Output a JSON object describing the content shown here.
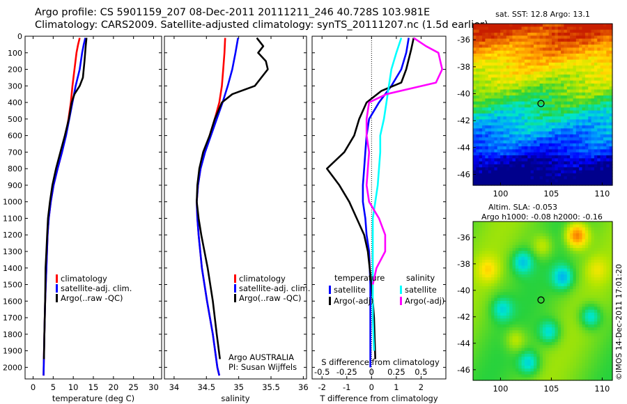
{
  "header": {
    "line1": "Argo profile: CS 5901159_207 08-Dec-2011 20111211_246 40.728S 103.981E",
    "line2": "Climatology: CARS2009. Satellite-adjusted climatology: synTS_20111207.nc (1.5d earlier)"
  },
  "colors": {
    "climatology": "#ff0000",
    "satellite": "#0000ff",
    "argo": "#000000",
    "sal_satellite": "#00ffff",
    "sal_argo": "#ff00ff"
  },
  "depth_axis": {
    "ticks": [
      0,
      100,
      200,
      300,
      400,
      500,
      600,
      700,
      800,
      900,
      1000,
      1100,
      1200,
      1300,
      1400,
      1500,
      1600,
      1700,
      1800,
      1900,
      2000
    ],
    "range": [
      0,
      2070
    ]
  },
  "chart_data": [
    {
      "id": "temperature",
      "type": "line",
      "xlabel": "temperature (deg C)",
      "xlim": [
        -2,
        32
      ],
      "xticks": [
        "0",
        "5",
        "10",
        "15",
        "20",
        "25",
        "30"
      ],
      "xtick_values": [
        0,
        5,
        10,
        15,
        20,
        25,
        30
      ],
      "legend": [
        "climatology",
        "satellite-adj. clim.",
        "Argo(..raw -QC)"
      ],
      "series": [
        {
          "name": "climatology",
          "color": "#ff0000",
          "points": [
            [
              11.6,
              10
            ],
            [
              11.2,
              50
            ],
            [
              10.8,
              100
            ],
            [
              10.3,
              200
            ],
            [
              9.8,
              300
            ],
            [
              9.4,
              400
            ],
            [
              8.8,
              500
            ],
            [
              8.1,
              600
            ],
            [
              7.2,
              700
            ],
            [
              6.1,
              800
            ],
            [
              5.1,
              900
            ],
            [
              4.4,
              1000
            ],
            [
              3.9,
              1100
            ],
            [
              3.6,
              1200
            ],
            [
              3.3,
              1400
            ],
            [
              3.0,
              1600
            ],
            [
              2.8,
              1800
            ],
            [
              2.6,
              2050
            ]
          ]
        },
        {
          "name": "satellite-adj. clim.",
          "color": "#0000ff",
          "points": [
            [
              13.0,
              10
            ],
            [
              12.6,
              50
            ],
            [
              12.2,
              100
            ],
            [
              11.6,
              200
            ],
            [
              10.6,
              300
            ],
            [
              9.8,
              400
            ],
            [
              9.0,
              500
            ],
            [
              8.2,
              600
            ],
            [
              7.2,
              700
            ],
            [
              6.1,
              800
            ],
            [
              5.1,
              900
            ],
            [
              4.4,
              1000
            ],
            [
              3.9,
              1100
            ],
            [
              3.6,
              1200
            ],
            [
              3.3,
              1400
            ],
            [
              3.0,
              1600
            ],
            [
              2.8,
              1800
            ],
            [
              2.6,
              2050
            ]
          ]
        },
        {
          "name": "Argo(..raw -QC)",
          "color": "#000000",
          "points": [
            [
              13.3,
              10
            ],
            [
              13.1,
              60
            ],
            [
              12.8,
              150
            ],
            [
              12.4,
              250
            ],
            [
              11.6,
              300
            ],
            [
              10.3,
              350
            ],
            [
              9.6,
              400
            ],
            [
              8.9,
              500
            ],
            [
              7.9,
              600
            ],
            [
              6.8,
              700
            ],
            [
              5.7,
              800
            ],
            [
              4.8,
              900
            ],
            [
              4.2,
              1000
            ],
            [
              3.7,
              1100
            ],
            [
              3.5,
              1200
            ],
            [
              3.3,
              1300
            ],
            [
              3.1,
              1400
            ],
            [
              3.0,
              1600
            ],
            [
              2.8,
              1800
            ],
            [
              2.7,
              1950
            ]
          ]
        }
      ]
    },
    {
      "id": "salinity",
      "type": "line",
      "xlabel": "salinity",
      "xlim": [
        33.85,
        36.05
      ],
      "xticks": [
        "34",
        "34.5",
        "35",
        "35.5",
        "36"
      ],
      "xtick_values": [
        34,
        34.5,
        35,
        35.5,
        36
      ],
      "legend": [
        "climatology",
        "satellite-adj. clim.",
        "Argo(..raw -QC)"
      ],
      "footer_lines": [
        "Argo AUSTRALIA",
        "PI: Susan Wijffels"
      ],
      "series": [
        {
          "name": "climatology",
          "color": "#ff0000",
          "points": [
            [
              34.79,
              10
            ],
            [
              34.78,
              100
            ],
            [
              34.76,
              200
            ],
            [
              34.74,
              300
            ],
            [
              34.7,
              400
            ],
            [
              34.63,
              500
            ],
            [
              34.55,
              600
            ],
            [
              34.47,
              700
            ],
            [
              34.41,
              800
            ],
            [
              34.37,
              900
            ],
            [
              34.35,
              1000
            ],
            [
              34.36,
              1100
            ],
            [
              34.38,
              1200
            ],
            [
              34.43,
              1400
            ],
            [
              34.51,
              1600
            ],
            [
              34.6,
              1800
            ],
            [
              34.67,
              2000
            ],
            [
              34.7,
              2050
            ]
          ]
        },
        {
          "name": "satellite-adj. clim.",
          "color": "#0000ff",
          "points": [
            [
              34.99,
              10
            ],
            [
              34.95,
              100
            ],
            [
              34.9,
              200
            ],
            [
              34.83,
              300
            ],
            [
              34.75,
              400
            ],
            [
              34.66,
              500
            ],
            [
              34.57,
              600
            ],
            [
              34.48,
              700
            ],
            [
              34.41,
              800
            ],
            [
              34.37,
              900
            ],
            [
              34.35,
              1000
            ],
            [
              34.36,
              1100
            ],
            [
              34.38,
              1200
            ],
            [
              34.43,
              1400
            ],
            [
              34.51,
              1600
            ],
            [
              34.6,
              1800
            ],
            [
              34.67,
              2000
            ],
            [
              34.7,
              2050
            ]
          ]
        },
        {
          "name": "Argo(..raw -QC)",
          "color": "#000000",
          "points": [
            [
              35.28,
              10
            ],
            [
              35.38,
              60
            ],
            [
              35.3,
              100
            ],
            [
              35.42,
              150
            ],
            [
              35.45,
              200
            ],
            [
              35.25,
              300
            ],
            [
              34.9,
              350
            ],
            [
              34.74,
              400
            ],
            [
              34.63,
              500
            ],
            [
              34.55,
              600
            ],
            [
              34.45,
              700
            ],
            [
              34.39,
              800
            ],
            [
              34.36,
              900
            ],
            [
              34.35,
              1000
            ],
            [
              34.38,
              1100
            ],
            [
              34.42,
              1200
            ],
            [
              34.52,
              1400
            ],
            [
              34.6,
              1600
            ],
            [
              34.66,
              1800
            ],
            [
              34.71,
              1950
            ]
          ]
        }
      ]
    },
    {
      "id": "difference",
      "type": "line",
      "xlabel": "T difference from climatology",
      "xlim": [
        -2.4,
        3.0
      ],
      "xticks": [
        "-2",
        "-1",
        "0",
        "1",
        "2"
      ],
      "xtick_values": [
        -2,
        -1,
        0,
        1,
        2
      ],
      "top_xlabel": "S difference from climatology",
      "top_xticks": [
        "-0.5",
        "-0.25",
        "0",
        "0.25",
        "0.5"
      ],
      "top_xtick_values": [
        -2,
        -1,
        0,
        1,
        2
      ],
      "legend_headers": [
        "temperature",
        "salinity"
      ],
      "legend": [
        "satellite",
        "Argo(-adj)",
        "satellite",
        "Argo(-adj)"
      ],
      "series": [
        {
          "name": "satellite",
          "color": "#0000ff",
          "points": [
            [
              1.5,
              10
            ],
            [
              1.4,
              100
            ],
            [
              1.2,
              200
            ],
            [
              0.8,
              300
            ],
            [
              0.3,
              400
            ],
            [
              -0.1,
              500
            ],
            [
              -0.2,
              600
            ],
            [
              -0.25,
              700
            ],
            [
              -0.3,
              800
            ],
            [
              -0.35,
              900
            ],
            [
              -0.35,
              1000
            ],
            [
              -0.25,
              1100
            ],
            [
              -0.2,
              1200
            ],
            [
              -0.1,
              1300
            ],
            [
              -0.05,
              1500
            ],
            [
              -0.05,
              2000
            ]
          ]
        },
        {
          "name": "Argo(-adj)",
          "color": "#000000",
          "points": [
            [
              1.7,
              10
            ],
            [
              1.6,
              80
            ],
            [
              1.4,
              200
            ],
            [
              1.2,
              280
            ],
            [
              0.4,
              330
            ],
            [
              -0.2,
              400
            ],
            [
              -0.5,
              500
            ],
            [
              -0.7,
              600
            ],
            [
              -1.1,
              700
            ],
            [
              -1.8,
              800
            ],
            [
              -1.3,
              900
            ],
            [
              -0.9,
              1000
            ],
            [
              -0.6,
              1100
            ],
            [
              -0.3,
              1200
            ],
            [
              -0.15,
              1300
            ],
            [
              0,
              1500
            ],
            [
              0.1,
              1700
            ],
            [
              0.15,
              1950
            ]
          ]
        },
        {
          "name": "satellite",
          "color": "#00ffff",
          "points": [
            [
              1.2,
              10
            ],
            [
              1.0,
              100
            ],
            [
              0.8,
              200
            ],
            [
              0.7,
              300
            ],
            [
              0.6,
              400
            ],
            [
              0.5,
              500
            ],
            [
              0.35,
              600
            ],
            [
              0.35,
              700
            ],
            [
              0.3,
              800
            ],
            [
              0.25,
              900
            ],
            [
              0.15,
              1000
            ],
            [
              0.05,
              1100
            ],
            [
              0.05,
              1500
            ],
            [
              0.05,
              1700
            ],
            [
              0.1,
              1900
            ]
          ]
        },
        {
          "name": "Argo(-adj)",
          "color": "#ff00ff",
          "points": [
            [
              1.7,
              10
            ],
            [
              2.2,
              60
            ],
            [
              2.7,
              100
            ],
            [
              2.85,
              200
            ],
            [
              2.6,
              280
            ],
            [
              0.6,
              350
            ],
            [
              -0.1,
              400
            ],
            [
              -0.2,
              500
            ],
            [
              -0.2,
              600
            ],
            [
              -0.1,
              700
            ],
            [
              -0.2,
              900
            ],
            [
              -0.1,
              1000
            ],
            [
              0.3,
              1100
            ],
            [
              0.55,
              1200
            ],
            [
              0.55,
              1300
            ],
            [
              0.2,
              1400
            ],
            [
              0.05,
              1500
            ]
          ]
        }
      ]
    }
  ],
  "maps": [
    {
      "id": "sst",
      "title": "sat. SST: 12.8  Argo: 13.1",
      "xticks": [
        "100",
        "105",
        "110"
      ],
      "xtick_values": [
        100,
        105,
        110
      ],
      "yticks": [
        "-36",
        "-38",
        "-40",
        "-42",
        "-44",
        "-46"
      ],
      "ytick_values": [
        -36,
        -38,
        -40,
        -42,
        -44,
        -46
      ],
      "lon_range": [
        97.3,
        111.0
      ],
      "lat_range": [
        -34.8,
        -46.8
      ],
      "float_lon": 103.98,
      "float_lat": -40.73
    },
    {
      "id": "sla",
      "title_lines": [
        "Altim. SLA: -0.053",
        "Argo h1000: -0.08  h2000: -0.16"
      ],
      "xticks": [
        "100",
        "105",
        "110"
      ],
      "xtick_values": [
        100,
        105,
        110
      ],
      "yticks": [
        "-36",
        "-38",
        "-40",
        "-42",
        "-44",
        "-46"
      ],
      "ytick_values": [
        -36,
        -38,
        -40,
        -42,
        -44,
        -46
      ],
      "lon_range": [
        97.3,
        111.0
      ],
      "lat_range": [
        -34.8,
        -46.8
      ],
      "float_lon": 103.98,
      "float_lat": -40.73
    }
  ],
  "copyright": "©IMOS 14-Dec-2011 17:01:20"
}
